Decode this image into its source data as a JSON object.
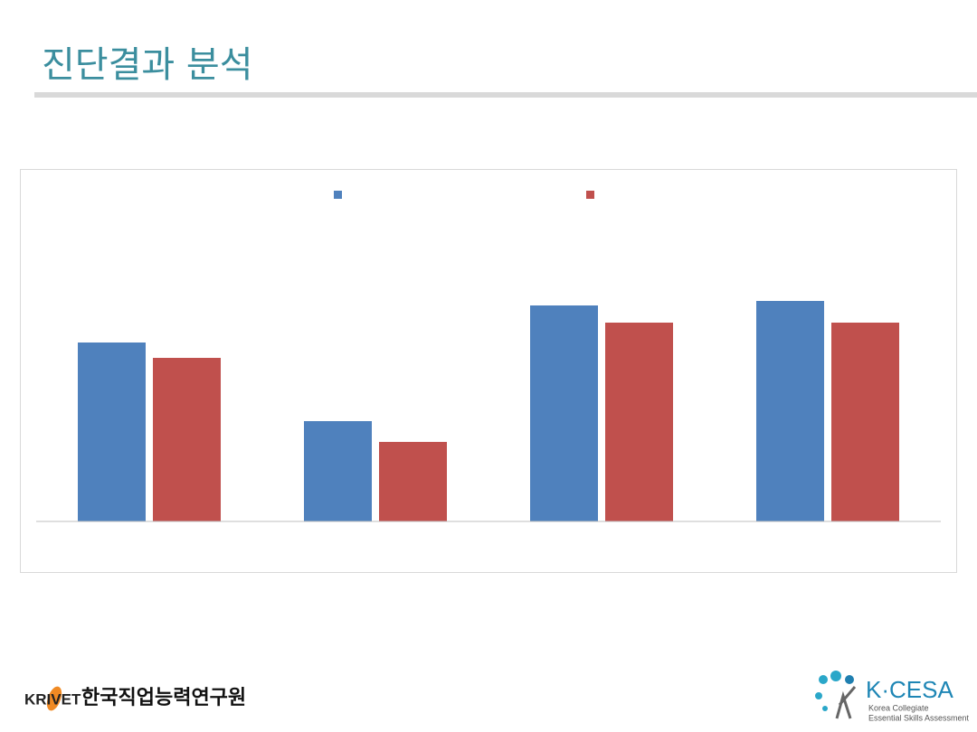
{
  "slide": {
    "title": "진단결과 분석",
    "logo_left": {
      "abbr": "KRIVET",
      "name": "한국직업능력연구원"
    },
    "logo_right": {
      "abbr": "K·CESA",
      "line1": "Korea Collegiate",
      "line2": "Essential Skills Assessment"
    }
  },
  "chart_data": {
    "type": "bar",
    "categories": [
      null,
      null,
      null,
      null
    ],
    "series": [
      {
        "color": "#4f81bd",
        "values": [
          198,
          111,
          239,
          244
        ]
      },
      {
        "color": "#c0504d",
        "values": [
          181,
          88,
          220,
          220
        ]
      }
    ],
    "ylim": [
      0,
      347
    ],
    "grid": false
  }
}
